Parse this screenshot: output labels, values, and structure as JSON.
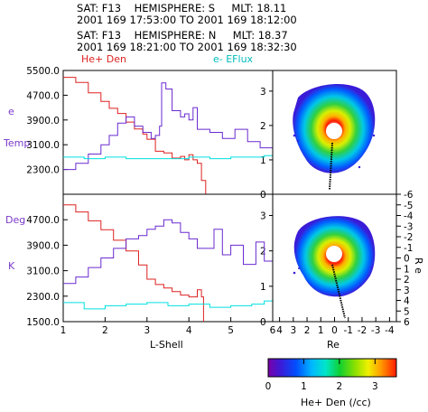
{
  "header": {
    "line1": "SAT: F13    HEMISPHERE: S     MLT: 18.11",
    "line2": "2001 169 17:53:00 TO 2001 169 18:12:00",
    "line3": "SAT: F13    HEMISPHERE: N     MLT: 18.37",
    "line4": "2001 169 18:21:00 TO 2001 169 18:32:30"
  },
  "legend": {
    "he_den": "He+ Den",
    "e_eflux": "e- EFlux"
  },
  "left_axis_title": [
    "e",
    "Temp",
    "Deg",
    "K"
  ],
  "right_axis_title": "R e",
  "colors": {
    "he_den": "#dd2222",
    "e_temp": "#6a2ad0",
    "e_eflux": "#00e0e0",
    "track": "#000000"
  },
  "chart_data": [
    {
      "type": "line",
      "panel": "top",
      "xlabel": "",
      "ylabel": "e Temp",
      "xlim": [
        1,
        6
      ],
      "ylim": [
        1500,
        5500
      ],
      "y_ticks": [
        "5500.0",
        "4700.0",
        "3900.0",
        "3100.0",
        "2300.0"
      ],
      "y_tick_values": [
        5500,
        4700,
        3900,
        3100,
        2300
      ],
      "right_ticks": [
        "0",
        "1",
        "2",
        "3"
      ],
      "right_tick_values": [
        0,
        1,
        2,
        3
      ],
      "right_ylim": [
        0,
        3.6
      ],
      "series": [
        {
          "name": "He+ Den",
          "axis": "right",
          "x": [
            1.0,
            1.3,
            1.6,
            1.9,
            2.1,
            2.3,
            2.5,
            2.7,
            2.9,
            3.0,
            3.2,
            3.4,
            3.6,
            3.8,
            3.9,
            4.0,
            4.1,
            4.2,
            4.3,
            4.4
          ],
          "y": [
            3.4,
            3.25,
            2.95,
            2.7,
            2.5,
            2.35,
            2.1,
            1.9,
            1.75,
            1.6,
            1.25,
            1.2,
            1.05,
            1.1,
            1.0,
            1.15,
            1.0,
            0.9,
            0.4,
            0.0
          ]
        },
        {
          "name": "",
          "axis": "left",
          "x": [
            1.0,
            1.3,
            1.6,
            1.9,
            2.1,
            2.3,
            2.5,
            2.7,
            2.9,
            3.1,
            3.2,
            3.3,
            3.35,
            3.45,
            3.6,
            3.8,
            3.9,
            4.0,
            4.1,
            4.2,
            4.5,
            4.8,
            5.1,
            5.4,
            5.7,
            6.0
          ],
          "y": [
            2300,
            2500,
            2800,
            3100,
            3400,
            3800,
            4000,
            3700,
            3500,
            3300,
            3400,
            3700,
            5100,
            4900,
            4200,
            4000,
            4100,
            3900,
            4300,
            3600,
            3500,
            3300,
            3600,
            3200,
            3000,
            2800
          ]
        },
        {
          "name": "e- EFlux",
          "axis": "left",
          "x": [
            1.0,
            1.5,
            2.0,
            2.5,
            3.0,
            3.5,
            4.0,
            4.5,
            5.0,
            5.5,
            5.8,
            6.0
          ],
          "y": [
            2700,
            2650,
            2700,
            2650,
            2650,
            2650,
            2700,
            2650,
            2700,
            2700,
            2750,
            3000
          ]
        }
      ]
    },
    {
      "type": "line",
      "panel": "bottom",
      "xlabel": "L-Shell",
      "ylabel": "Deg K",
      "xlim": [
        1,
        6
      ],
      "ylim": [
        1500,
        5500
      ],
      "x_ticks": [
        "1",
        "2",
        "3",
        "4",
        "5",
        "6"
      ],
      "y_ticks": [
        "4700.0",
        "3900.0",
        "3100.0",
        "2300.0",
        "1500.0"
      ],
      "y_tick_values": [
        4700,
        3900,
        3100,
        2300,
        1500
      ],
      "right_ticks": [
        "0",
        "1",
        "2",
        "3"
      ],
      "right_tick_values": [
        0,
        1,
        2,
        3
      ],
      "right_ylim": [
        0,
        3.6
      ],
      "series": [
        {
          "name": "He+ Den",
          "axis": "right",
          "x": [
            1.0,
            1.3,
            1.6,
            1.9,
            2.2,
            2.5,
            2.8,
            3.0,
            3.2,
            3.4,
            3.6,
            3.8,
            4.0,
            4.2,
            4.3,
            4.35
          ],
          "y": [
            3.3,
            3.1,
            2.85,
            2.6,
            2.3,
            2.0,
            1.6,
            1.2,
            1.05,
            0.95,
            0.85,
            0.75,
            0.7,
            0.9,
            0.7,
            0.0
          ]
        },
        {
          "name": "",
          "axis": "left",
          "x": [
            1.0,
            1.3,
            1.6,
            1.9,
            2.2,
            2.5,
            2.8,
            3.0,
            3.2,
            3.4,
            3.6,
            3.8,
            4.0,
            4.2,
            4.4,
            4.6,
            4.8,
            5.0,
            5.3,
            5.6,
            5.8,
            6.0
          ],
          "y": [
            2700,
            2900,
            3200,
            3500,
            3800,
            4100,
            4200,
            4400,
            4500,
            4700,
            4600,
            4300,
            4100,
            3800,
            3800,
            4400,
            3600,
            3900,
            3300,
            4000,
            3400,
            3100
          ]
        },
        {
          "name": "e- EFlux",
          "axis": "left",
          "x": [
            1.0,
            1.5,
            2.0,
            2.5,
            3.0,
            3.5,
            4.0,
            4.5,
            5.0,
            5.5,
            5.8,
            6.0
          ],
          "y": [
            2100,
            1900,
            2000,
            2050,
            2100,
            2000,
            2050,
            1950,
            2000,
            2050,
            2150,
            2600
          ]
        }
      ]
    },
    {
      "type": "heatmap",
      "panel": "right-top",
      "description_axes": "Re",
      "x_ticks": [
        "4",
        "3",
        "2",
        "1",
        "0",
        "-1",
        "-2",
        "-3",
        "-4"
      ],
      "xlim": [
        4.5,
        -4.5
      ],
      "y_ticks_right": [
        "-6",
        "-5",
        "-4",
        "-3",
        "-2",
        "-1",
        "0",
        "1",
        "2",
        "3",
        "4",
        "5",
        "6"
      ],
      "ylim": [
        -6,
        6
      ]
    },
    {
      "type": "heatmap",
      "panel": "right-bottom",
      "xlabel": "Re",
      "x_ticks": [
        "4",
        "3",
        "2",
        "1",
        "0",
        "-1",
        "-2",
        "-3",
        "-4"
      ],
      "xlim": [
        4.5,
        -4.5
      ]
    }
  ],
  "colorbar": {
    "label": "He+ Den (/cc)",
    "ticks": [
      "0",
      "1",
      "2",
      "3"
    ],
    "tick_values": [
      0,
      1,
      2,
      3
    ],
    "range": [
      0,
      3.6
    ]
  }
}
